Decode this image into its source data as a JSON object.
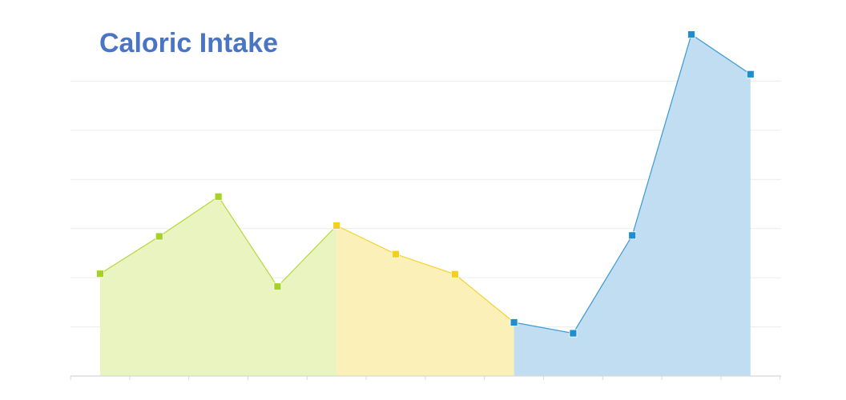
{
  "chart_data": {
    "type": "area",
    "title": "Caloric Intake",
    "xlabel": "",
    "ylabel": "",
    "x": [
      1,
      2,
      3,
      4,
      5,
      6,
      7,
      8,
      9,
      10,
      11,
      12
    ],
    "values": [
      2080,
      2840,
      3650,
      1820,
      3060,
      2480,
      2070,
      1090,
      870,
      2860,
      6950,
      6140
    ],
    "ylim": [
      0,
      7000
    ],
    "grid": true,
    "legend": "none",
    "segments": [
      {
        "from_index": 0,
        "to_index": 4,
        "fill": "#e9f4c0",
        "line": "#b3d936",
        "marker": "#a6d323"
      },
      {
        "from_index": 4,
        "to_index": 7,
        "fill": "#fcf0b9",
        "line": "#f2d430",
        "marker": "#f4cf1c"
      },
      {
        "from_index": 7,
        "to_index": 11,
        "fill": "#c0ddf1",
        "line": "#3a9ad4",
        "marker": "#1f8ed1"
      }
    ],
    "colors": {
      "title": "#4a74c4",
      "grid": "#ececec",
      "axis": "#d8d8d8"
    }
  }
}
